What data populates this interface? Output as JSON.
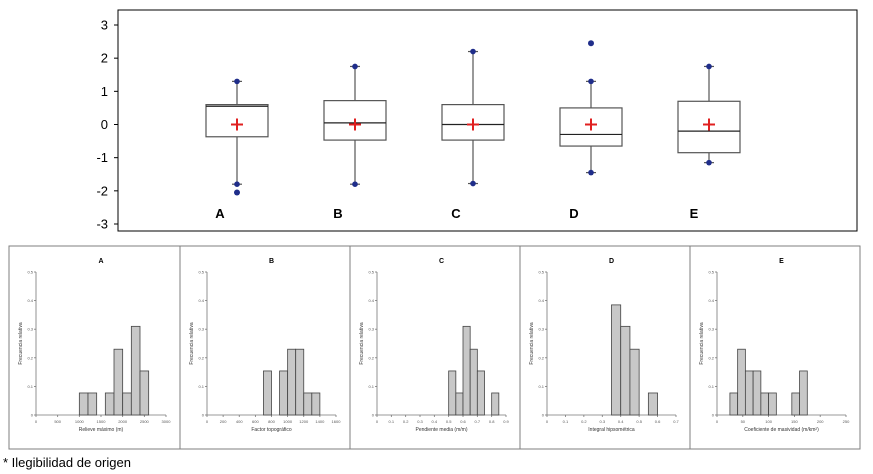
{
  "footnote": "* Ilegibilidad de origen",
  "chart_data": [
    {
      "type": "boxplot",
      "title": "",
      "xlabel": "",
      "ylabel": "",
      "ylim": [
        -3,
        3
      ],
      "yticks": [
        3,
        2,
        1,
        0,
        -1,
        -2,
        -3
      ],
      "categories": [
        "A",
        "B",
        "C",
        "D",
        "E"
      ],
      "boxes": [
        {
          "name": "A",
          "q1": -0.37,
          "median": 0.55,
          "q3": 0.6,
          "whisker_low": -1.8,
          "whisker_high": 1.3,
          "mean": 0,
          "outliers": [
            -2.05
          ]
        },
        {
          "name": "B",
          "q1": -0.47,
          "median": 0.05,
          "q3": 0.72,
          "whisker_low": -1.8,
          "whisker_high": 1.75,
          "mean": 0,
          "outliers": []
        },
        {
          "name": "C",
          "q1": -0.47,
          "median": 0.0,
          "q3": 0.6,
          "whisker_low": -1.78,
          "whisker_high": 2.2,
          "mean": 0,
          "outliers": []
        },
        {
          "name": "D",
          "q1": -0.65,
          "median": -0.3,
          "q3": 0.5,
          "whisker_low": -1.45,
          "whisker_high": 1.3,
          "mean": 0,
          "outliers": [
            2.45
          ]
        },
        {
          "name": "E",
          "q1": -0.85,
          "median": -0.2,
          "q3": 0.7,
          "whisker_low": -1.15,
          "whisker_high": 1.75,
          "mean": 0,
          "outliers": []
        }
      ],
      "colors": {
        "box_line": "#555555",
        "outlier": "#1f2d8a",
        "mean_marker": "#e02020"
      }
    },
    {
      "type": "bar",
      "title": "A",
      "xlabel": "Relieve máximo (m)",
      "ylabel": "Frecuencia relativa",
      "ylim": [
        0,
        0.5
      ],
      "yticks": [
        "0",
        "0.1",
        "0.2",
        "0.3",
        "0.4",
        "0.5"
      ],
      "xticks": [
        "0",
        "500",
        "1000",
        "1500",
        "2000",
        "2500",
        "3000"
      ],
      "xlim": [
        0,
        3000
      ],
      "bin_width": 200,
      "bin_starts": [
        1000,
        1200,
        1600,
        1800,
        2000,
        2200,
        2400
      ],
      "values": [
        0.077,
        0.077,
        0.077,
        0.23,
        0.077,
        0.31,
        0.154
      ]
    },
    {
      "type": "bar",
      "title": "B",
      "xlabel": "Factor topográfico",
      "ylabel": "Frecuencia relativa",
      "ylim": [
        0,
        0.5
      ],
      "yticks": [
        "0",
        "0.1",
        "0.2",
        "0.3",
        "0.4",
        "0.5"
      ],
      "xticks": [
        "0",
        "200",
        "400",
        "600",
        "800",
        "1000",
        "1200",
        "1400",
        "1600"
      ],
      "xlim": [
        0,
        1600
      ],
      "bin_width": 100,
      "bin_starts": [
        700,
        900,
        1000,
        1100,
        1200,
        1300
      ],
      "values": [
        0.154,
        0.154,
        0.23,
        0.23,
        0.077,
        0.077
      ]
    },
    {
      "type": "bar",
      "title": "C",
      "xlabel": "Pendiente media (m/m)",
      "ylabel": "Frecuencia relativa",
      "ylim": [
        0,
        0.5
      ],
      "yticks": [
        "0",
        "0.1",
        "0.2",
        "0.3",
        "0.4",
        "0.5"
      ],
      "xticks": [
        "0",
        "0.1",
        "0.2",
        "0.3",
        "0.4",
        "0.5",
        "0.6",
        "0.7",
        "0.8",
        "0.9"
      ],
      "xlim": [
        0,
        0.9
      ],
      "bin_width": 0.05,
      "bin_starts": [
        0.5,
        0.55,
        0.6,
        0.65,
        0.7,
        0.8
      ],
      "values": [
        0.154,
        0.077,
        0.31,
        0.23,
        0.154,
        0.077
      ]
    },
    {
      "type": "bar",
      "title": "D",
      "xlabel": "Integral hipsométrica",
      "ylabel": "Frecuencia relativa",
      "ylim": [
        0,
        0.5
      ],
      "yticks": [
        "0",
        "0.1",
        "0.2",
        "0.3",
        "0.4",
        "0.5"
      ],
      "xticks": [
        "0",
        "0.1",
        "0.2",
        "0.3",
        "0.4",
        "0.5",
        "0.6",
        "0.7"
      ],
      "xlim": [
        0,
        0.7
      ],
      "bin_width": 0.05,
      "bin_starts": [
        0.35,
        0.4,
        0.45,
        0.55
      ],
      "values": [
        0.385,
        0.31,
        0.23,
        0.077
      ]
    },
    {
      "type": "bar",
      "title": "E",
      "xlabel": "Coeficiente de masividad (m/km²)",
      "ylabel": "Frecuencia relativa",
      "ylim": [
        0,
        0.5
      ],
      "yticks": [
        "0",
        "0.1",
        "0.2",
        "0.3",
        "0.4",
        "0.5"
      ],
      "xticks": [
        "0",
        "50",
        "100",
        "150",
        "200",
        "250"
      ],
      "xlim": [
        0,
        250
      ],
      "bin_width": 15,
      "bin_starts": [
        25,
        40,
        55,
        70,
        85,
        100,
        145,
        160
      ],
      "values": [
        0.077,
        0.23,
        0.154,
        0.154,
        0.077,
        0.077,
        0.077,
        0.154
      ]
    }
  ]
}
